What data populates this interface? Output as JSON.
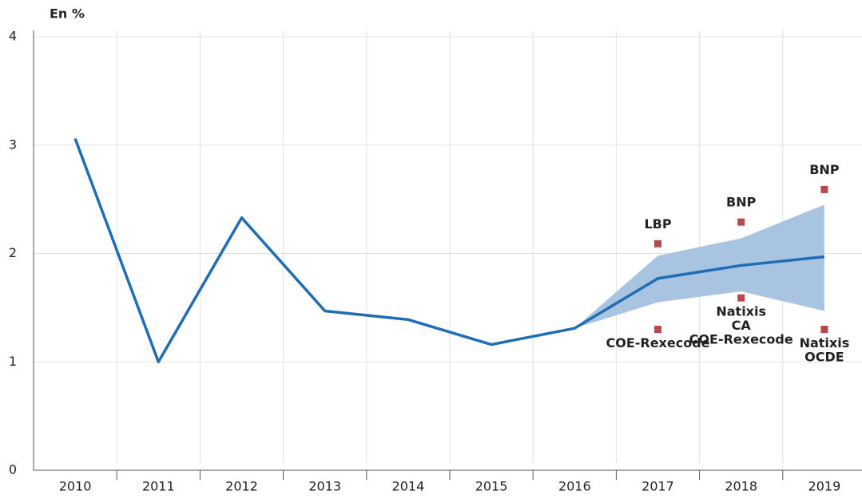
{
  "chart_data": {
    "type": "line",
    "y_axis_label": "En %",
    "categories": [
      "2010",
      "2011",
      "2012",
      "2013",
      "2014",
      "2015",
      "2016",
      "2017",
      "2018",
      "2019"
    ],
    "series": [
      {
        "name": null,
        "color": "#1f6db5",
        "values": [
          3.06,
          1.0,
          2.33,
          1.47,
          1.39,
          1.16,
          1.31,
          1.77,
          1.89,
          1.97
        ]
      }
    ],
    "band": {
      "color": "#a9c4e0",
      "lower": [
        null,
        null,
        null,
        null,
        null,
        null,
        1.31,
        1.55,
        1.65,
        1.47
      ],
      "upper": [
        null,
        null,
        null,
        null,
        null,
        null,
        1.31,
        1.98,
        2.14,
        2.45
      ]
    },
    "forecast_color": "#b5494b",
    "forecasts": [
      {
        "x": "2017",
        "value": 2.09,
        "labels": [
          "LBP"
        ]
      },
      {
        "x": "2017",
        "value": 1.3,
        "labels": [
          "COE-Rexecode"
        ]
      },
      {
        "x": "2018",
        "value": 2.29,
        "labels": [
          "BNP"
        ]
      },
      {
        "x": "2018",
        "value": 1.59,
        "labels": [
          "Natixis",
          "CA",
          "COE-Rexecode"
        ]
      },
      {
        "x": "2019",
        "value": 2.59,
        "labels": [
          "BNP"
        ]
      },
      {
        "x": "2019",
        "value": 1.3,
        "labels": [
          "Natixis",
          "OCDE"
        ]
      }
    ],
    "ylim": [
      0,
      4
    ],
    "yticks": [
      0,
      1,
      2,
      3,
      4
    ],
    "grid": true
  }
}
